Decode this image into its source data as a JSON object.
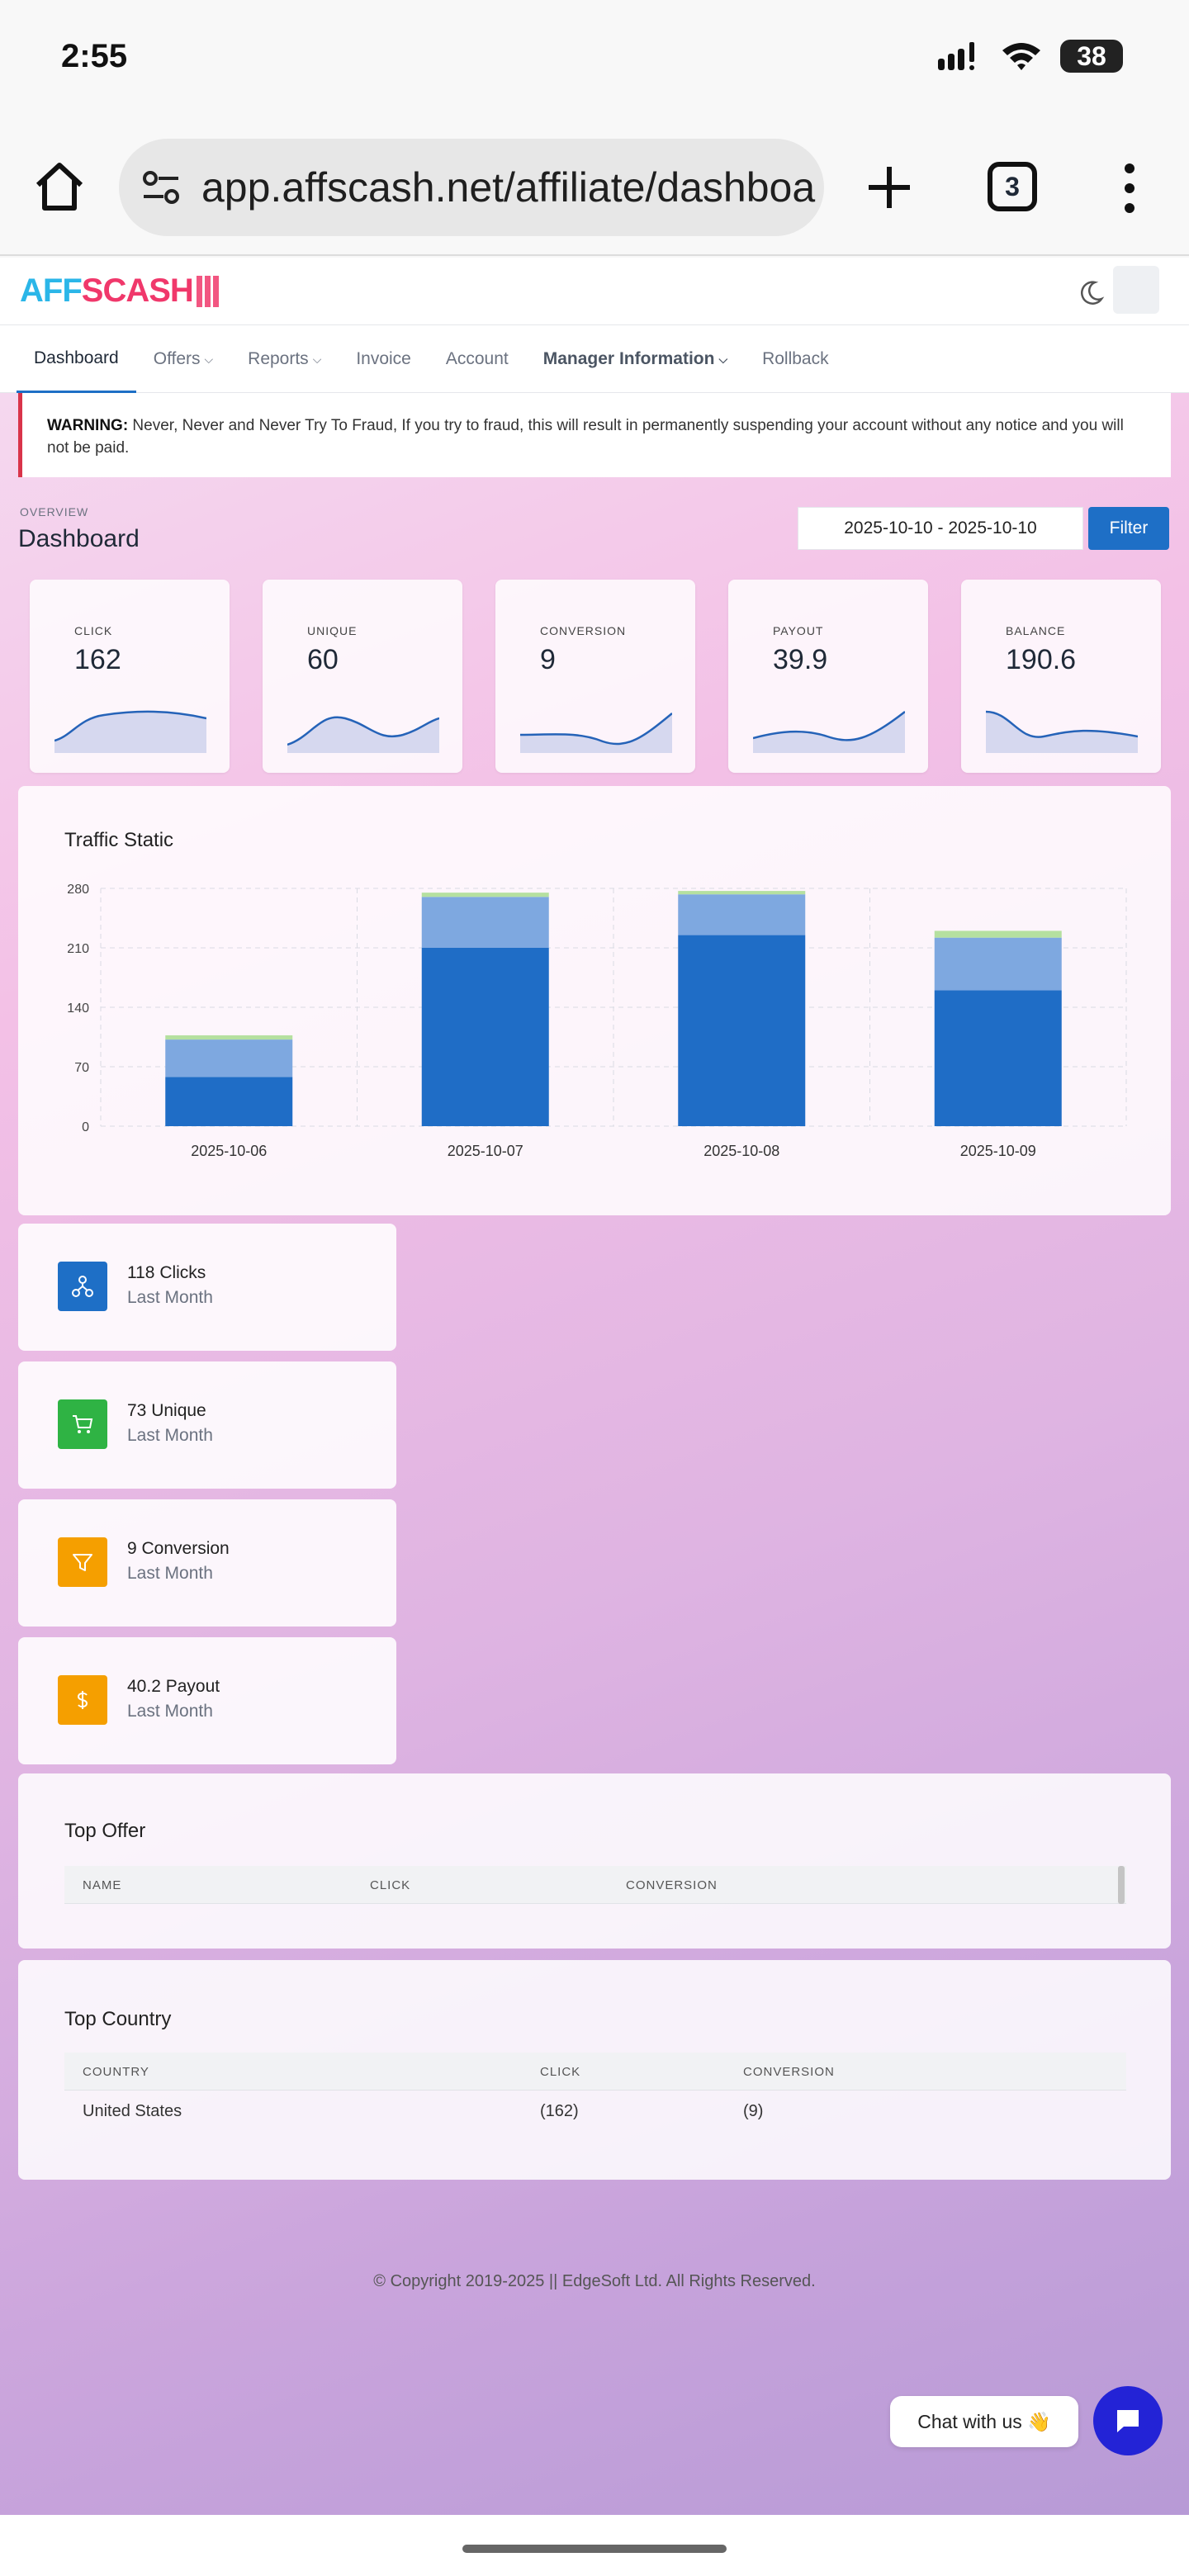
{
  "status_bar": {
    "time": "2:55",
    "battery": "38"
  },
  "browser": {
    "url": "app.affscash.net/affiliate/dashboa",
    "tab_count": "3"
  },
  "app": {
    "logo_part1": "AFF",
    "logo_part2": "SCASH"
  },
  "nav": [
    {
      "label": "Dashboard"
    },
    {
      "label": "Offers"
    },
    {
      "label": "Reports"
    },
    {
      "label": "Invoice"
    },
    {
      "label": "Account"
    },
    {
      "label": "Manager Information"
    },
    {
      "label": "Rollback"
    }
  ],
  "warning": {
    "prefix": "WARNING:",
    "text": " Never, Never and Never Try To Fraud, If you try to fraud, this will result in permanently suspending your account without any notice and you will not be paid."
  },
  "overview_label": "OVERVIEW",
  "page_title": "Dashboard",
  "date_range": "2025-10-10 - 2025-10-10",
  "filter_label": "Filter",
  "stats": [
    {
      "label": "CLICK",
      "value": "162"
    },
    {
      "label": "UNIQUE",
      "value": "60"
    },
    {
      "label": "CONVERSION",
      "value": "9"
    },
    {
      "label": "PAYOUT",
      "value": "39.9"
    },
    {
      "label": "BALANCE",
      "value": "190.6"
    }
  ],
  "traffic_title": "Traffic Static",
  "chart_data": {
    "type": "bar",
    "stacked": true,
    "title": "Traffic Static",
    "categories": [
      "2025-10-06",
      "2025-10-07",
      "2025-10-08",
      "2025-10-09"
    ],
    "series": [
      {
        "values": [
          58,
          210,
          225,
          160
        ],
        "color": "#1f6dc6"
      },
      {
        "values": [
          44,
          60,
          48,
          62
        ],
        "color": "#7ea8e0"
      },
      {
        "values": [
          5,
          5,
          4,
          8
        ],
        "color": "#b5e0a0"
      }
    ],
    "yticks": [
      0,
      70,
      140,
      210,
      280
    ],
    "ylim": [
      0,
      280
    ],
    "grid": true
  },
  "summary": [
    {
      "line1": "118 Clicks",
      "line2": "Last Month",
      "color": "#1e6fc6",
      "icon": "sitemap-icon"
    },
    {
      "line1": "73 Unique",
      "line2": "Last Month",
      "color": "#2fb344",
      "icon": "cart-icon"
    },
    {
      "line1": "9 Conversion",
      "line2": "Last Month",
      "color": "#f59f00",
      "icon": "filter-icon"
    },
    {
      "line1": "40.2 Payout",
      "line2": "Last Month",
      "color": "#f59f00",
      "icon": "dollar-icon"
    }
  ],
  "top_offer": {
    "title": "Top Offer",
    "columns": [
      "NAME",
      "CLICK",
      "CONVERSION"
    ]
  },
  "top_country": {
    "title": "Top Country",
    "columns": [
      "COUNTRY",
      "CLICK",
      "CONVERSION"
    ],
    "rows": [
      {
        "country": "United States",
        "click": "(162)",
        "conversion": "(9)"
      }
    ]
  },
  "footer": "© Copyright 2019-2025 || EdgeSoft Ltd. All Rights Reserved.",
  "chat_label": "Chat with us 👋"
}
